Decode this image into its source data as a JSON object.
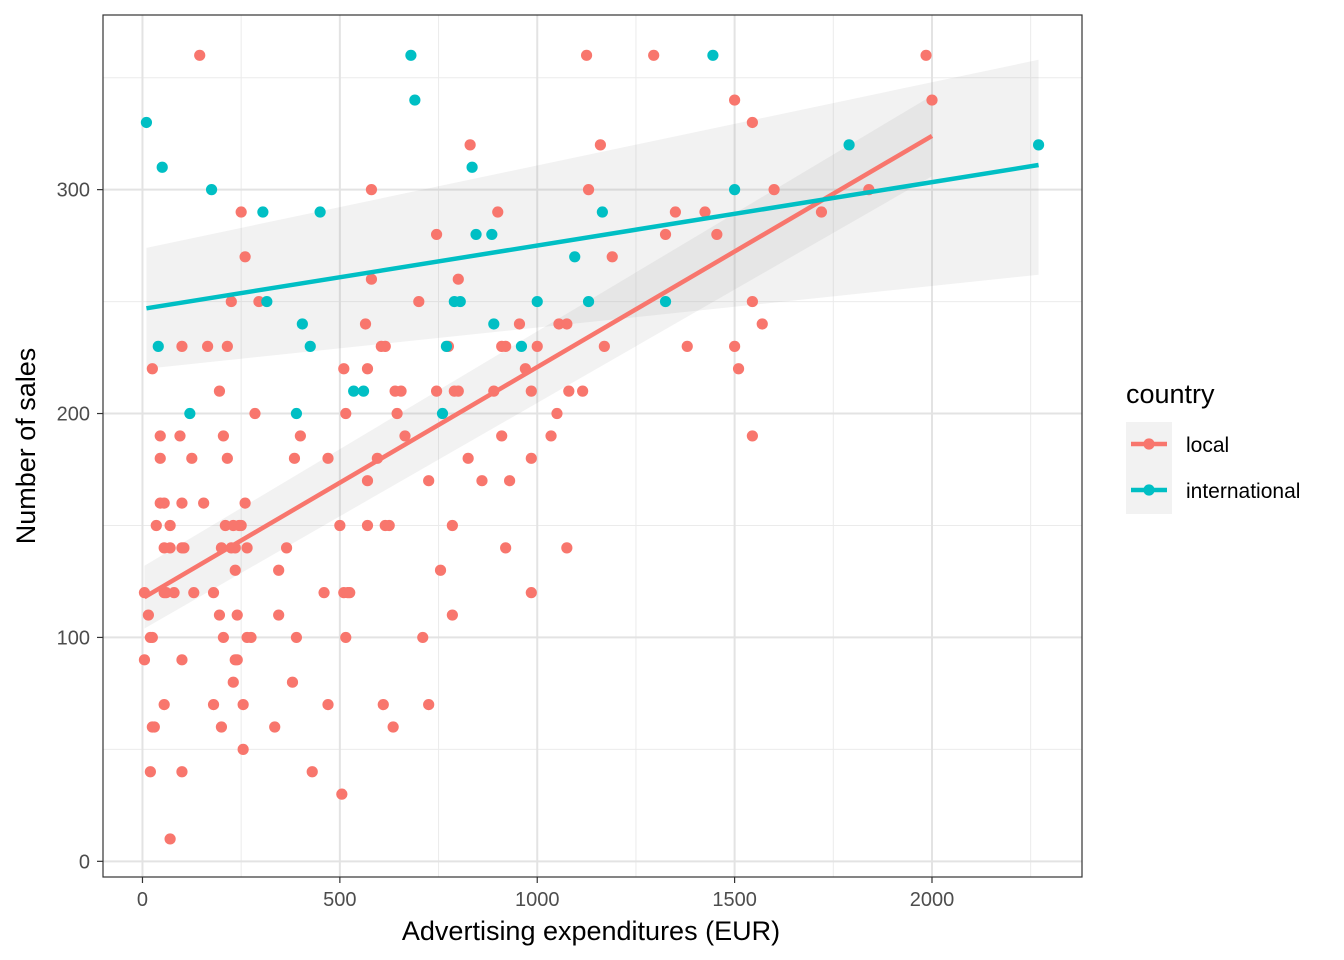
{
  "chart_data": {
    "type": "scatter",
    "title": "",
    "xlabel": "Advertising expenditures (EUR)",
    "ylabel": "Number of sales",
    "xlim": [
      -100,
      2380
    ],
    "ylim": [
      -7,
      378
    ],
    "x_ticks": [
      0,
      500,
      1000,
      1500,
      2000
    ],
    "y_ticks": [
      0,
      100,
      200,
      300
    ],
    "x_tick_labels": [
      "0",
      "500",
      "1000",
      "1500",
      "2000"
    ],
    "y_tick_labels": [
      "0",
      "100",
      "200",
      "300"
    ],
    "grid": true,
    "legend": {
      "title": "country",
      "position": "right",
      "entries": [
        "local",
        "international"
      ]
    },
    "series": [
      {
        "name": "local",
        "color": "#F8766D",
        "fit": {
          "x": [
            5,
            2000
          ],
          "y": [
            118,
            324
          ],
          "ci_lower": [
            104,
            306
          ],
          "ci_upper": [
            132,
            342
          ]
        },
        "points": [
          [
            145,
            360
          ],
          [
            1125,
            360
          ],
          [
            1295,
            360
          ],
          [
            1985,
            360
          ],
          [
            1500,
            340
          ],
          [
            2000,
            340
          ],
          [
            1545,
            330
          ],
          [
            830,
            320
          ],
          [
            1160,
            320
          ],
          [
            580,
            300
          ],
          [
            1130,
            300
          ],
          [
            1600,
            300
          ],
          [
            1840,
            300
          ],
          [
            250,
            290
          ],
          [
            900,
            290
          ],
          [
            1350,
            290
          ],
          [
            1425,
            290
          ],
          [
            1720,
            290
          ],
          [
            745,
            280
          ],
          [
            1325,
            280
          ],
          [
            1455,
            280
          ],
          [
            260,
            270
          ],
          [
            1190,
            270
          ],
          [
            800,
            260
          ],
          [
            580,
            260
          ],
          [
            225,
            250
          ],
          [
            295,
            250
          ],
          [
            700,
            250
          ],
          [
            1545,
            250
          ],
          [
            565,
            240
          ],
          [
            955,
            240
          ],
          [
            1055,
            240
          ],
          [
            1075,
            240
          ],
          [
            1570,
            240
          ],
          [
            100,
            230
          ],
          [
            165,
            230
          ],
          [
            215,
            230
          ],
          [
            605,
            230
          ],
          [
            615,
            230
          ],
          [
            775,
            230
          ],
          [
            910,
            230
          ],
          [
            920,
            230
          ],
          [
            1000,
            230
          ],
          [
            1170,
            230
          ],
          [
            1380,
            230
          ],
          [
            1500,
            230
          ],
          [
            25,
            220
          ],
          [
            510,
            220
          ],
          [
            570,
            220
          ],
          [
            970,
            220
          ],
          [
            1510,
            220
          ],
          [
            195,
            210
          ],
          [
            640,
            210
          ],
          [
            655,
            210
          ],
          [
            745,
            210
          ],
          [
            790,
            210
          ],
          [
            800,
            210
          ],
          [
            890,
            210
          ],
          [
            985,
            210
          ],
          [
            1080,
            210
          ],
          [
            1115,
            210
          ],
          [
            285,
            200
          ],
          [
            515,
            200
          ],
          [
            645,
            200
          ],
          [
            1050,
            200
          ],
          [
            45,
            190
          ],
          [
            95,
            190
          ],
          [
            205,
            190
          ],
          [
            400,
            190
          ],
          [
            665,
            190
          ],
          [
            910,
            190
          ],
          [
            1035,
            190
          ],
          [
            1545,
            190
          ],
          [
            45,
            180
          ],
          [
            125,
            180
          ],
          [
            215,
            180
          ],
          [
            385,
            180
          ],
          [
            470,
            180
          ],
          [
            595,
            180
          ],
          [
            825,
            180
          ],
          [
            985,
            180
          ],
          [
            725,
            170
          ],
          [
            570,
            170
          ],
          [
            860,
            170
          ],
          [
            930,
            170
          ],
          [
            45,
            160
          ],
          [
            55,
            160
          ],
          [
            100,
            160
          ],
          [
            155,
            160
          ],
          [
            260,
            160
          ],
          [
            35,
            150
          ],
          [
            70,
            150
          ],
          [
            210,
            150
          ],
          [
            230,
            150
          ],
          [
            245,
            150
          ],
          [
            250,
            150
          ],
          [
            500,
            150
          ],
          [
            570,
            150
          ],
          [
            615,
            150
          ],
          [
            625,
            150
          ],
          [
            785,
            150
          ],
          [
            55,
            140
          ],
          [
            70,
            140
          ],
          [
            100,
            140
          ],
          [
            105,
            140
          ],
          [
            200,
            140
          ],
          [
            225,
            140
          ],
          [
            235,
            140
          ],
          [
            265,
            140
          ],
          [
            365,
            140
          ],
          [
            920,
            140
          ],
          [
            1075,
            140
          ],
          [
            235,
            130
          ],
          [
            345,
            130
          ],
          [
            755,
            130
          ],
          [
            5,
            120
          ],
          [
            55,
            120
          ],
          [
            60,
            120
          ],
          [
            80,
            120
          ],
          [
            130,
            120
          ],
          [
            180,
            120
          ],
          [
            460,
            120
          ],
          [
            510,
            120
          ],
          [
            520,
            120
          ],
          [
            525,
            120
          ],
          [
            985,
            120
          ],
          [
            15,
            110
          ],
          [
            195,
            110
          ],
          [
            240,
            110
          ],
          [
            345,
            110
          ],
          [
            785,
            110
          ],
          [
            20,
            100
          ],
          [
            25,
            100
          ],
          [
            205,
            100
          ],
          [
            265,
            100
          ],
          [
            275,
            100
          ],
          [
            390,
            100
          ],
          [
            515,
            100
          ],
          [
            710,
            100
          ],
          [
            5,
            90
          ],
          [
            100,
            90
          ],
          [
            235,
            90
          ],
          [
            240,
            90
          ],
          [
            230,
            80
          ],
          [
            380,
            80
          ],
          [
            55,
            70
          ],
          [
            180,
            70
          ],
          [
            255,
            70
          ],
          [
            470,
            70
          ],
          [
            610,
            70
          ],
          [
            725,
            70
          ],
          [
            25,
            60
          ],
          [
            30,
            60
          ],
          [
            200,
            60
          ],
          [
            335,
            60
          ],
          [
            635,
            60
          ],
          [
            255,
            50
          ],
          [
            20,
            40
          ],
          [
            100,
            40
          ],
          [
            430,
            40
          ],
          [
            505,
            30
          ],
          [
            70,
            10
          ]
        ]
      },
      {
        "name": "international",
        "color": "#00BFC4",
        "fit": {
          "x": [
            10,
            2270
          ],
          "y": [
            247,
            311
          ],
          "ci_lower": [
            220,
            262
          ],
          "ci_upper": [
            274,
            358
          ]
        },
        "points": [
          [
            680,
            360
          ],
          [
            1445,
            360
          ],
          [
            690,
            340
          ],
          [
            10,
            330
          ],
          [
            1790,
            320
          ],
          [
            2270,
            320
          ],
          [
            50,
            310
          ],
          [
            835,
            310
          ],
          [
            175,
            300
          ],
          [
            1500,
            300
          ],
          [
            305,
            290
          ],
          [
            450,
            290
          ],
          [
            1165,
            290
          ],
          [
            845,
            280
          ],
          [
            885,
            280
          ],
          [
            1095,
            270
          ],
          [
            315,
            250
          ],
          [
            790,
            250
          ],
          [
            805,
            250
          ],
          [
            1000,
            250
          ],
          [
            1130,
            250
          ],
          [
            1325,
            250
          ],
          [
            405,
            240
          ],
          [
            890,
            240
          ],
          [
            40,
            230
          ],
          [
            425,
            230
          ],
          [
            770,
            230
          ],
          [
            960,
            230
          ],
          [
            535,
            210
          ],
          [
            560,
            210
          ],
          [
            120,
            200
          ],
          [
            390,
            200
          ],
          [
            760,
            200
          ]
        ]
      }
    ]
  }
}
